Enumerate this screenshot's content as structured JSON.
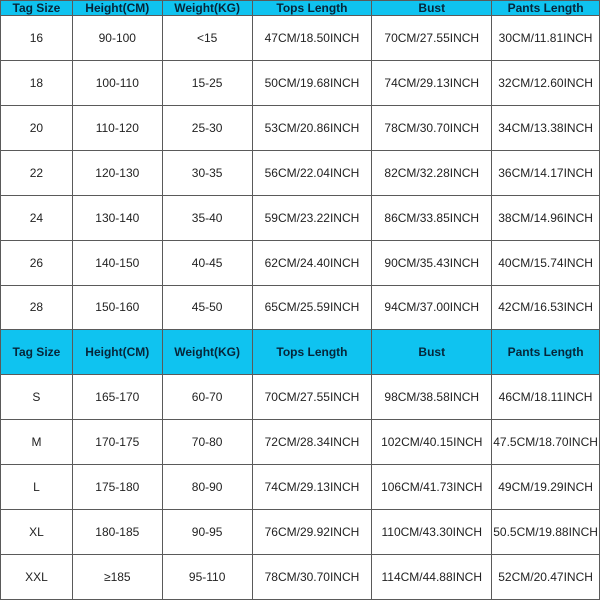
{
  "size_chart": {
    "type": "table",
    "header_bg": "#0fc3f0",
    "header_text_color": "#06263a",
    "border_color": "#5a5a5a",
    "font_family": "Segoe UI, Arial, sans-serif",
    "font_size_pt": 9,
    "columns": [
      {
        "label": "Tag Size",
        "width_pct": 12
      },
      {
        "label": "Height(CM)",
        "width_pct": 15
      },
      {
        "label": "Weight(KG)",
        "width_pct": 15
      },
      {
        "label": "Tops Length",
        "width_pct": 20
      },
      {
        "label": "Bust",
        "width_pct": 20
      },
      {
        "label": "Pants Length",
        "width_pct": 18
      }
    ],
    "section1_rows": [
      [
        "16",
        "90-100",
        "<15",
        "47CM/18.50INCH",
        "70CM/27.55INCH",
        "30CM/11.81INCH"
      ],
      [
        "18",
        "100-110",
        "15-25",
        "50CM/19.68INCH",
        "74CM/29.13INCH",
        "32CM/12.60INCH"
      ],
      [
        "20",
        "110-120",
        "25-30",
        "53CM/20.86INCH",
        "78CM/30.70INCH",
        "34CM/13.38INCH"
      ],
      [
        "22",
        "120-130",
        "30-35",
        "56CM/22.04INCH",
        "82CM/32.28INCH",
        "36CM/14.17INCH"
      ],
      [
        "24",
        "130-140",
        "35-40",
        "59CM/23.22INCH",
        "86CM/33.85INCH",
        "38CM/14.96INCH"
      ],
      [
        "26",
        "140-150",
        "40-45",
        "62CM/24.40INCH",
        "90CM/35.43INCH",
        "40CM/15.74INCH"
      ],
      [
        "28",
        "150-160",
        "45-50",
        "65CM/25.59INCH",
        "94CM/37.00INCH",
        "42CM/16.53INCH"
      ]
    ],
    "section2_rows": [
      [
        "S",
        "165-170",
        "60-70",
        "70CM/27.55INCH",
        "98CM/38.58INCH",
        "46CM/18.11INCH"
      ],
      [
        "M",
        "170-175",
        "70-80",
        "72CM/28.34INCH",
        "102CM/40.15INCH",
        "47.5CM/18.70INCH"
      ],
      [
        "L",
        "175-180",
        "80-90",
        "74CM/29.13INCH",
        "106CM/41.73INCH",
        "49CM/19.29INCH"
      ],
      [
        "XL",
        "180-185",
        "90-95",
        "76CM/29.92INCH",
        "110CM/43.30INCH",
        "50.5CM/19.88INCH"
      ],
      [
        "XXL",
        "≥185",
        "95-110",
        "78CM/30.70INCH",
        "114CM/44.88INCH",
        "52CM/20.47INCH"
      ]
    ]
  }
}
